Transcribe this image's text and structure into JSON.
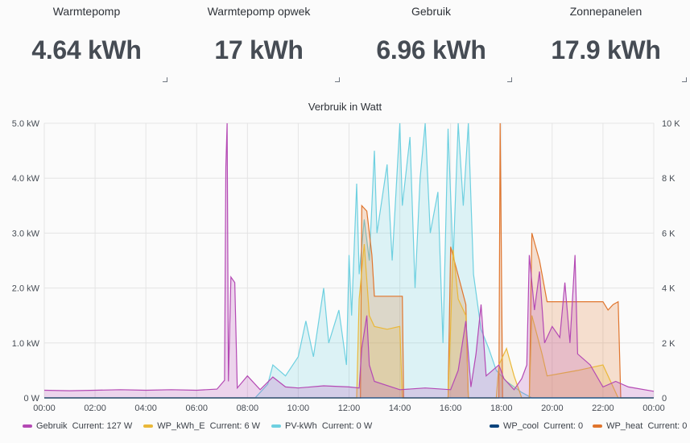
{
  "stats": [
    {
      "title": "Warmtepomp",
      "value": "4.64 kWh"
    },
    {
      "title": "Warmtepomp opwek",
      "value": "17 kWh"
    },
    {
      "title": "Gebruik",
      "value": "6.96 kWh"
    },
    {
      "title": "Zonnepanelen",
      "value": "17.9 kWh"
    }
  ],
  "chart_data": {
    "type": "area",
    "title": "Verbruik in Watt",
    "x_ticks": [
      "00:00",
      "02:00",
      "04:00",
      "06:00",
      "08:00",
      "10:00",
      "12:00",
      "14:00",
      "16:00",
      "18:00",
      "20:00",
      "22:00",
      "00:00"
    ],
    "y_left_ticks": [
      "0 W",
      "1.0 kW",
      "2.0 kW",
      "3.0 kW",
      "4.0 kW",
      "5.0 kW"
    ],
    "y_right_ticks": [
      "0",
      "2 K",
      "4 K",
      "6 K",
      "8 K",
      "10 K"
    ],
    "ylim_left": [
      0,
      5000
    ],
    "ylim_right": [
      0,
      10000
    ],
    "x_unit": "hour",
    "series": [
      {
        "name": "Gebruik",
        "color": "#b449b4",
        "axis": "left",
        "points": [
          [
            0,
            140
          ],
          [
            1,
            130
          ],
          [
            2,
            140
          ],
          [
            3,
            150
          ],
          [
            4,
            140
          ],
          [
            5,
            150
          ],
          [
            6,
            140
          ],
          [
            6.8,
            160
          ],
          [
            7.1,
            320
          ],
          [
            7.15,
            4200
          ],
          [
            7.2,
            5000
          ],
          [
            7.25,
            300
          ],
          [
            7.35,
            2200
          ],
          [
            7.5,
            2100
          ],
          [
            7.6,
            180
          ],
          [
            8,
            400
          ],
          [
            8.5,
            150
          ],
          [
            9,
            380
          ],
          [
            9.5,
            200
          ],
          [
            10,
            180
          ],
          [
            11,
            220
          ],
          [
            12,
            200
          ],
          [
            12.4,
            180
          ],
          [
            12.5,
            900
          ],
          [
            12.7,
            1500
          ],
          [
            12.8,
            600
          ],
          [
            13,
            300
          ],
          [
            14,
            150
          ],
          [
            15,
            180
          ],
          [
            16,
            150
          ],
          [
            16.3,
            500
          ],
          [
            16.6,
            1400
          ],
          [
            16.8,
            200
          ],
          [
            17,
            800
          ],
          [
            17.2,
            1700
          ],
          [
            17.4,
            400
          ],
          [
            17.9,
            600
          ],
          [
            18.1,
            350
          ],
          [
            18.5,
            150
          ],
          [
            18.8,
            350
          ],
          [
            19,
            600
          ],
          [
            19.1,
            2600
          ],
          [
            19.3,
            1600
          ],
          [
            19.5,
            2300
          ],
          [
            19.7,
            1000
          ],
          [
            20,
            1300
          ],
          [
            20.3,
            1100
          ],
          [
            20.5,
            2100
          ],
          [
            20.7,
            1000
          ],
          [
            20.9,
            2600
          ],
          [
            21,
            800
          ],
          [
            21.5,
            600
          ],
          [
            22,
            200
          ],
          [
            22.5,
            300
          ],
          [
            23,
            200
          ],
          [
            24,
            120
          ]
        ]
      },
      {
        "name": "WP_kWh_E",
        "color": "#eab839",
        "axis": "left",
        "points": [
          [
            0,
            0
          ],
          [
            12.3,
            0
          ],
          [
            12.4,
            1800
          ],
          [
            12.6,
            2800
          ],
          [
            12.8,
            1500
          ],
          [
            13,
            1300
          ],
          [
            13.5,
            1250
          ],
          [
            14,
            1300
          ],
          [
            14.1,
            0
          ],
          [
            15.9,
            0
          ],
          [
            16,
            1300
          ],
          [
            16.1,
            2700
          ],
          [
            16.3,
            1800
          ],
          [
            16.6,
            1500
          ],
          [
            16.7,
            0
          ],
          [
            17.8,
            0
          ],
          [
            17.9,
            600
          ],
          [
            18.2,
            900
          ],
          [
            18.5,
            400
          ],
          [
            18.8,
            0
          ],
          [
            19.1,
            0
          ],
          [
            19.2,
            1500
          ],
          [
            19.6,
            800
          ],
          [
            19.8,
            400
          ],
          [
            21,
            500
          ],
          [
            22,
            600
          ],
          [
            22.6,
            0
          ],
          [
            24,
            0
          ]
        ]
      },
      {
        "name": "PV-kWh",
        "color": "#6ed0e0",
        "axis": "right",
        "points": [
          [
            0,
            0
          ],
          [
            8.3,
            0
          ],
          [
            8.8,
            500
          ],
          [
            9,
            1200
          ],
          [
            9.5,
            800
          ],
          [
            10,
            1500
          ],
          [
            10.3,
            2800
          ],
          [
            10.6,
            1500
          ],
          [
            11,
            4000
          ],
          [
            11.2,
            2000
          ],
          [
            11.6,
            3200
          ],
          [
            11.9,
            1200
          ],
          [
            12,
            5200
          ],
          [
            12.1,
            3000
          ],
          [
            12.3,
            7800
          ],
          [
            12.4,
            4500
          ],
          [
            12.6,
            6500
          ],
          [
            12.8,
            5000
          ],
          [
            13,
            9000
          ],
          [
            13.1,
            6000
          ],
          [
            13.5,
            8500
          ],
          [
            13.7,
            5000
          ],
          [
            14,
            10000
          ],
          [
            14.1,
            7000
          ],
          [
            14.4,
            9500
          ],
          [
            14.6,
            4000
          ],
          [
            14.8,
            8000
          ],
          [
            15,
            10000
          ],
          [
            15.2,
            6000
          ],
          [
            15.5,
            7500
          ],
          [
            15.7,
            2000
          ],
          [
            15.9,
            9800
          ],
          [
            16.1,
            5000
          ],
          [
            16.3,
            10000
          ],
          [
            16.5,
            7000
          ],
          [
            16.7,
            10000
          ],
          [
            16.9,
            4500
          ],
          [
            17.2,
            2500
          ],
          [
            17.5,
            1800
          ],
          [
            17.8,
            1000
          ],
          [
            18.2,
            600
          ],
          [
            18.8,
            200
          ],
          [
            19.2,
            0
          ],
          [
            24,
            0
          ]
        ]
      },
      {
        "name": "WP_cool",
        "color": "#0a437c",
        "axis": "right",
        "points": [
          [
            0,
            0
          ],
          [
            24,
            0
          ]
        ]
      },
      {
        "name": "WP_heat",
        "color": "#e0752d",
        "axis": "right",
        "points": [
          [
            0,
            0
          ],
          [
            12.45,
            0
          ],
          [
            12.5,
            7000
          ],
          [
            12.7,
            6800
          ],
          [
            12.9,
            5200
          ],
          [
            13,
            3700
          ],
          [
            13.6,
            3700
          ],
          [
            14.1,
            3700
          ],
          [
            14.15,
            0
          ],
          [
            15.9,
            0
          ],
          [
            16,
            5500
          ],
          [
            16.2,
            4800
          ],
          [
            16.6,
            3400
          ],
          [
            16.7,
            0
          ],
          [
            17.9,
            0
          ],
          [
            17.95,
            10000
          ],
          [
            18.05,
            0
          ],
          [
            19.1,
            0
          ],
          [
            19.2,
            6000
          ],
          [
            19.5,
            5000
          ],
          [
            19.8,
            3500
          ],
          [
            20,
            3500
          ],
          [
            21,
            3500
          ],
          [
            22,
            3500
          ],
          [
            22.2,
            3200
          ],
          [
            22.4,
            3400
          ],
          [
            22.6,
            3500
          ],
          [
            22.7,
            0
          ],
          [
            24,
            0
          ]
        ]
      }
    ],
    "legend_left": [
      {
        "name": "Gebruik",
        "current": "Current: 127 W",
        "color": "#b449b4"
      },
      {
        "name": "WP_kWh_E",
        "current": "Current: 6 W",
        "color": "#eab839"
      },
      {
        "name": "PV-kWh",
        "current": "Current: 0 W",
        "color": "#6ed0e0"
      }
    ],
    "legend_right": [
      {
        "name": "WP_cool",
        "current": "Current: 0",
        "color": "#0a437c"
      },
      {
        "name": "WP_heat",
        "current": "Current: 0",
        "color": "#e0752d"
      }
    ]
  }
}
